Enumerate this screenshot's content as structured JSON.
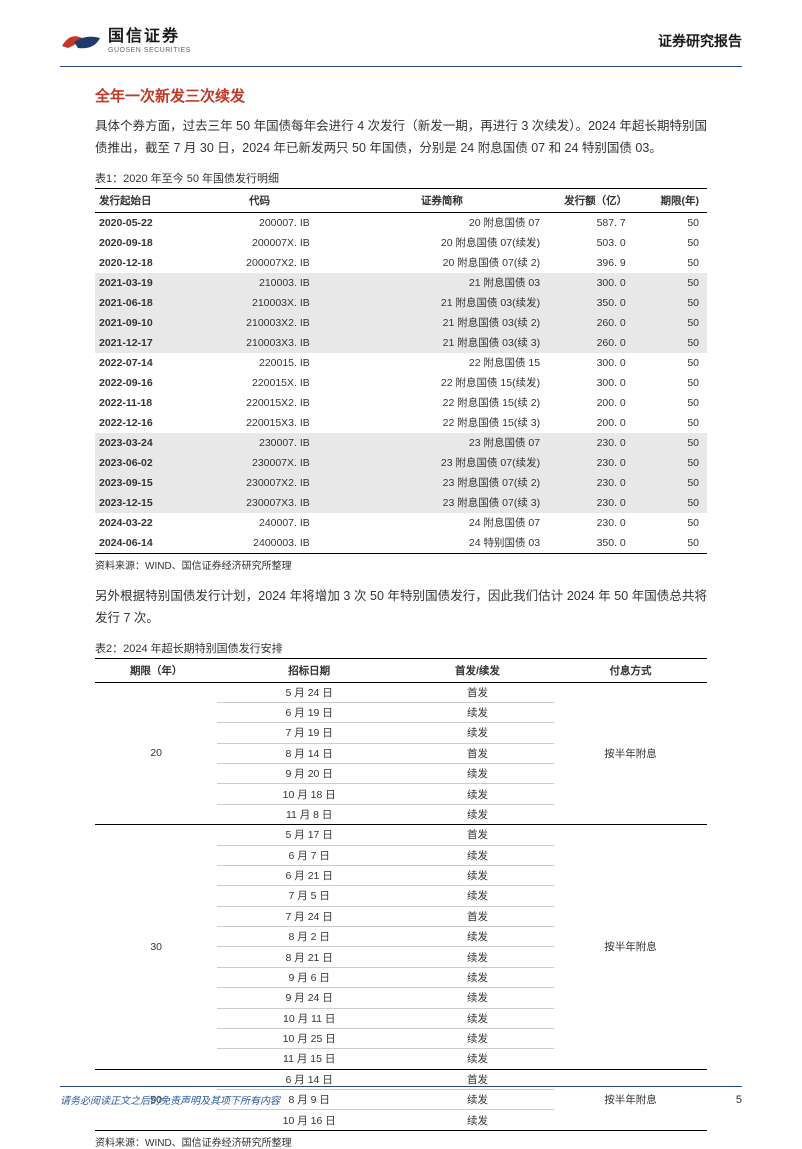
{
  "header": {
    "company_cn": "国信证券",
    "company_en": "GUOSEN SECURITIES",
    "report_type": "证券研究报告",
    "logo_colors": {
      "red": "#c8352a",
      "blue": "#1f3a6b"
    }
  },
  "section_title": "全年一次新发三次续发",
  "para1": "具体个券方面，过去三年 50 年国债每年会进行 4 次发行（新发一期，再进行 3 次续发）。2024 年超长期特别国债推出，截至 7 月 30 日，2024 年已新发两只 50 年国债，分别是 24 附息国债 07 和 24 特别国债 03。",
  "table1": {
    "title": "表1：2020 年至今 50 年国债发行明细",
    "columns": [
      "发行起始日",
      "代码",
      "证券简称",
      "发行额（亿）",
      "期限(年)"
    ],
    "rows": [
      {
        "date": "2020-05-22",
        "code": "200007. IB",
        "name": "20 附息国债 07",
        "amt": "587. 7",
        "term": "50",
        "shade": false
      },
      {
        "date": "2020-09-18",
        "code": "200007X. IB",
        "name": "20 附息国债 07(续发)",
        "amt": "503. 0",
        "term": "50",
        "shade": false
      },
      {
        "date": "2020-12-18",
        "code": "200007X2. IB",
        "name": "20 附息国债 07(续 2)",
        "amt": "396. 9",
        "term": "50",
        "shade": false
      },
      {
        "date": "2021-03-19",
        "code": "210003. IB",
        "name": "21 附息国债 03",
        "amt": "300. 0",
        "term": "50",
        "shade": true
      },
      {
        "date": "2021-06-18",
        "code": "210003X. IB",
        "name": "21 附息国债 03(续发)",
        "amt": "350. 0",
        "term": "50",
        "shade": true
      },
      {
        "date": "2021-09-10",
        "code": "210003X2. IB",
        "name": "21 附息国债 03(续 2)",
        "amt": "260. 0",
        "term": "50",
        "shade": true
      },
      {
        "date": "2021-12-17",
        "code": "210003X3. IB",
        "name": "21 附息国债 03(续 3)",
        "amt": "260. 0",
        "term": "50",
        "shade": true
      },
      {
        "date": "2022-07-14",
        "code": "220015. IB",
        "name": "22 附息国债 15",
        "amt": "300. 0",
        "term": "50",
        "shade": false
      },
      {
        "date": "2022-09-16",
        "code": "220015X. IB",
        "name": "22 附息国债 15(续发)",
        "amt": "300. 0",
        "term": "50",
        "shade": false
      },
      {
        "date": "2022-11-18",
        "code": "220015X2. IB",
        "name": "22 附息国债 15(续 2)",
        "amt": "200. 0",
        "term": "50",
        "shade": false
      },
      {
        "date": "2022-12-16",
        "code": "220015X3. IB",
        "name": "22 附息国债 15(续 3)",
        "amt": "200. 0",
        "term": "50",
        "shade": false
      },
      {
        "date": "2023-03-24",
        "code": "230007. IB",
        "name": "23 附息国债 07",
        "amt": "230. 0",
        "term": "50",
        "shade": true
      },
      {
        "date": "2023-06-02",
        "code": "230007X. IB",
        "name": "23 附息国债 07(续发)",
        "amt": "230. 0",
        "term": "50",
        "shade": true
      },
      {
        "date": "2023-09-15",
        "code": "230007X2. IB",
        "name": "23 附息国债 07(续 2)",
        "amt": "230. 0",
        "term": "50",
        "shade": true
      },
      {
        "date": "2023-12-15",
        "code": "230007X3. IB",
        "name": "23 附息国债 07(续 3)",
        "amt": "230. 0",
        "term": "50",
        "shade": true
      },
      {
        "date": "2024-03-22",
        "code": "240007. IB",
        "name": "24 附息国债 07",
        "amt": "230. 0",
        "term": "50",
        "shade": false
      },
      {
        "date": "2024-06-14",
        "code": "2400003. IB",
        "name": "24 特别国债 03",
        "amt": "350. 0",
        "term": "50",
        "shade": false
      }
    ],
    "source": "资料来源：WIND、国信证券经济研究所整理"
  },
  "para2": "另外根据特别国债发行计划，2024 年将增加 3 次 50 年特别国债发行，因此我们估计 2024 年 50 年国债总共将发行 7 次。",
  "table2": {
    "title": "表2：2024 年超长期特别国债发行安排",
    "columns": [
      "期限（年）",
      "招标日期",
      "首发/续发",
      "付息方式"
    ],
    "groups": [
      {
        "term": "20",
        "pay": "按半年附息",
        "rows": [
          {
            "date": "5 月 24 日",
            "type": "首发"
          },
          {
            "date": "6 月 19 日",
            "type": "续发"
          },
          {
            "date": "7 月 19 日",
            "type": "续发"
          },
          {
            "date": "8 月 14 日",
            "type": "首发"
          },
          {
            "date": "9 月 20 日",
            "type": "续发"
          },
          {
            "date": "10 月 18 日",
            "type": "续发"
          },
          {
            "date": "11 月 8 日",
            "type": "续发"
          }
        ]
      },
      {
        "term": "30",
        "pay": "按半年附息",
        "rows": [
          {
            "date": "5 月 17 日",
            "type": "首发"
          },
          {
            "date": "6 月 7 日",
            "type": "续发"
          },
          {
            "date": "6 月 21 日",
            "type": "续发"
          },
          {
            "date": "7 月 5 日",
            "type": "续发"
          },
          {
            "date": "7 月 24 日",
            "type": "首发"
          },
          {
            "date": "8 月 2 日",
            "type": "续发"
          },
          {
            "date": "8 月 21 日",
            "type": "续发"
          },
          {
            "date": "9 月 6 日",
            "type": "续发"
          },
          {
            "date": "9 月 24 日",
            "type": "续发"
          },
          {
            "date": "10 月 11 日",
            "type": "续发"
          },
          {
            "date": "10 月 25 日",
            "type": "续发"
          },
          {
            "date": "11 月 15 日",
            "type": "续发"
          }
        ]
      },
      {
        "term": "50",
        "pay": "按半年附息",
        "rows": [
          {
            "date": "6 月 14 日",
            "type": "首发"
          },
          {
            "date": "8 月 9 日",
            "type": "续发"
          },
          {
            "date": "10 月 16 日",
            "type": "续发"
          }
        ]
      }
    ],
    "source": "资料来源：WIND、国信证券经济研究所整理"
  },
  "footer": {
    "disclaimer": "请务必阅读正文之后的免责声明及其项下所有内容",
    "page": "5"
  }
}
